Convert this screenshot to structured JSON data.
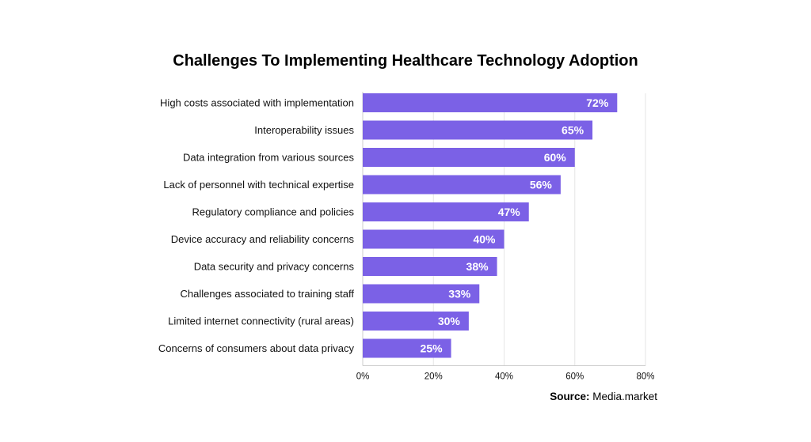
{
  "chart_data": {
    "type": "bar",
    "orientation": "horizontal",
    "title": "Challenges To Implementing Healthcare Technology Adoption",
    "categories": [
      "High costs associated with implementation",
      "Interoperability issues",
      "Data integration from various sources",
      "Lack of personnel with technical expertise",
      "Regulatory compliance and policies",
      "Device accuracy and reliability concerns",
      "Data security and privacy concerns",
      "Challenges associated to training staff",
      "Limited internet connectivity (rural areas)",
      "Concerns of consumers about data privacy"
    ],
    "values": [
      72,
      65,
      60,
      56,
      47,
      40,
      38,
      33,
      30,
      25
    ],
    "value_labels": [
      "72%",
      "65%",
      "60%",
      "56%",
      "47%",
      "40%",
      "38%",
      "33%",
      "30%",
      "25%"
    ],
    "xlim": [
      0,
      80
    ],
    "xticks": [
      "0%",
      "20%",
      "40%",
      "60%",
      "80%"
    ],
    "xtick_values": [
      0,
      20,
      40,
      60,
      80
    ],
    "grid": true,
    "bar_color": "#7b61e6",
    "grid_color": "#e6e6e6"
  },
  "source": {
    "label": "Source:",
    "text": "Media.market"
  }
}
